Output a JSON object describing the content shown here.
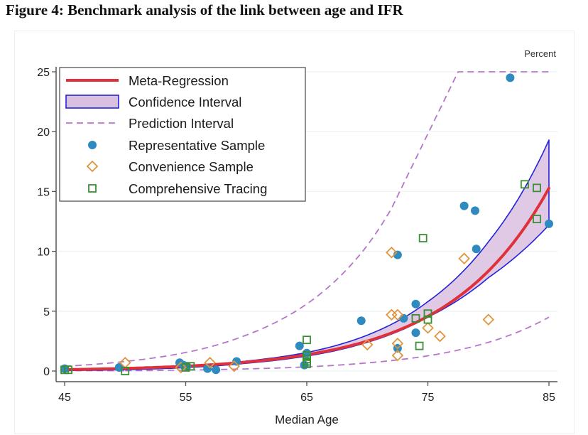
{
  "figure": {
    "title": "Figure 4: Benchmark analysis of the link between age and IFR"
  },
  "colors": {
    "meta_regression": "#e0313b",
    "ci_fill": "#d9bfe0",
    "ci_edge": "#2323d8",
    "prediction": "#b576c9",
    "representative": "#2f8bbf",
    "convenience": "#e1953b",
    "comprehensive": "#3a8e34",
    "grid": "#eef3f6",
    "axis": "#555555"
  },
  "chart_data": {
    "type": "scatter",
    "title": "",
    "xlabel": "Median Age",
    "ylabel": "Percent",
    "xlim": [
      45,
      85
    ],
    "ylim": [
      0,
      25
    ],
    "xticks": [
      "45",
      "55",
      "65",
      "75",
      "85"
    ],
    "yticks": [
      "0",
      "5",
      "10",
      "15",
      "20",
      "25"
    ],
    "xtick_values": [
      45,
      55,
      65,
      75,
      85
    ],
    "ytick_values": [
      0,
      5,
      10,
      15,
      20,
      25
    ],
    "grid": true,
    "legend_position": "top-left",
    "legend": [
      {
        "label": "Meta-Regression",
        "kind": "line"
      },
      {
        "label": "Confidence Interval",
        "kind": "band"
      },
      {
        "label": "Prediction Interval",
        "kind": "dashed"
      },
      {
        "label": "Representative Sample",
        "kind": "circle"
      },
      {
        "label": "Convenience Sample",
        "kind": "diamond"
      },
      {
        "label": "Comprehensive Tracing",
        "kind": "square"
      }
    ],
    "meta_regression": {
      "model": "log10(IFR) = a + b*age",
      "a": -3.27,
      "b": 0.0524
    },
    "confidence_interval_curves": {
      "x": [
        45,
        50,
        55,
        60,
        65,
        70,
        75,
        80,
        85
      ],
      "lower": [
        0.04,
        0.11,
        0.29,
        0.65,
        1.25,
        2.4,
        4.5,
        7.8,
        12.2
      ],
      "upper": [
        0.12,
        0.22,
        0.44,
        0.83,
        1.55,
        3.0,
        5.8,
        10.8,
        19.3
      ]
    },
    "prediction_interval_curves": {
      "x": [
        45,
        50,
        55,
        60,
        65,
        70,
        72.5,
        75,
        77.5,
        80,
        85
      ],
      "lower": [
        0.0,
        0.03,
        0.08,
        0.18,
        0.35,
        0.68,
        0.93,
        1.27,
        1.75,
        2.4,
        4.5
      ],
      "upper": [
        0.4,
        0.8,
        1.55,
        3.0,
        5.6,
        10.5,
        14.5,
        19.5,
        25,
        25,
        25
      ]
    },
    "series": [
      {
        "name": "Representative Sample",
        "marker": "circle",
        "points": [
          [
            45,
            0.2
          ],
          [
            49.5,
            0.3
          ],
          [
            54.5,
            0.7
          ],
          [
            54.8,
            0.5
          ],
          [
            55.1,
            0.4
          ],
          [
            56.8,
            0.2
          ],
          [
            57.5,
            0.1
          ],
          [
            59.2,
            0.8
          ],
          [
            64.4,
            2.1
          ],
          [
            65.0,
            1.5
          ],
          [
            64.8,
            0.5
          ],
          [
            69.5,
            4.2
          ],
          [
            72.5,
            9.7
          ],
          [
            72.5,
            1.9
          ],
          [
            73.0,
            4.4
          ],
          [
            74.0,
            5.6
          ],
          [
            74.0,
            3.2
          ],
          [
            78.0,
            13.8
          ],
          [
            78.9,
            13.4
          ],
          [
            79.0,
            10.2
          ],
          [
            81.8,
            24.5
          ],
          [
            85.0,
            12.3
          ]
        ]
      },
      {
        "name": "Convenience Sample",
        "marker": "diamond",
        "points": [
          [
            50.0,
            0.7
          ],
          [
            54.6,
            0.3
          ],
          [
            57.0,
            0.7
          ],
          [
            59.0,
            0.4
          ],
          [
            70.0,
            2.2
          ],
          [
            72.0,
            9.9
          ],
          [
            72.0,
            4.7
          ],
          [
            72.5,
            4.7
          ],
          [
            72.5,
            2.3
          ],
          [
            72.5,
            1.3
          ],
          [
            75.0,
            3.6
          ],
          [
            76.0,
            2.9
          ],
          [
            78.0,
            9.4
          ],
          [
            80.0,
            4.3
          ]
        ]
      },
      {
        "name": "Comprehensive Tracing",
        "marker": "square",
        "points": [
          [
            45.0,
            0.1
          ],
          [
            45.3,
            0.1
          ],
          [
            50.0,
            0.0
          ],
          [
            55.0,
            0.3
          ],
          [
            55.4,
            0.4
          ],
          [
            65.0,
            2.6
          ],
          [
            65.0,
            1.3
          ],
          [
            65.0,
            1.0
          ],
          [
            65.0,
            0.8
          ],
          [
            65.0,
            0.6
          ],
          [
            74.0,
            4.4
          ],
          [
            74.3,
            2.1
          ],
          [
            74.6,
            11.1
          ],
          [
            75.0,
            4.8
          ],
          [
            75.0,
            4.3
          ],
          [
            83.0,
            15.6
          ],
          [
            84.0,
            15.3
          ],
          [
            84.0,
            12.7
          ]
        ]
      }
    ]
  }
}
